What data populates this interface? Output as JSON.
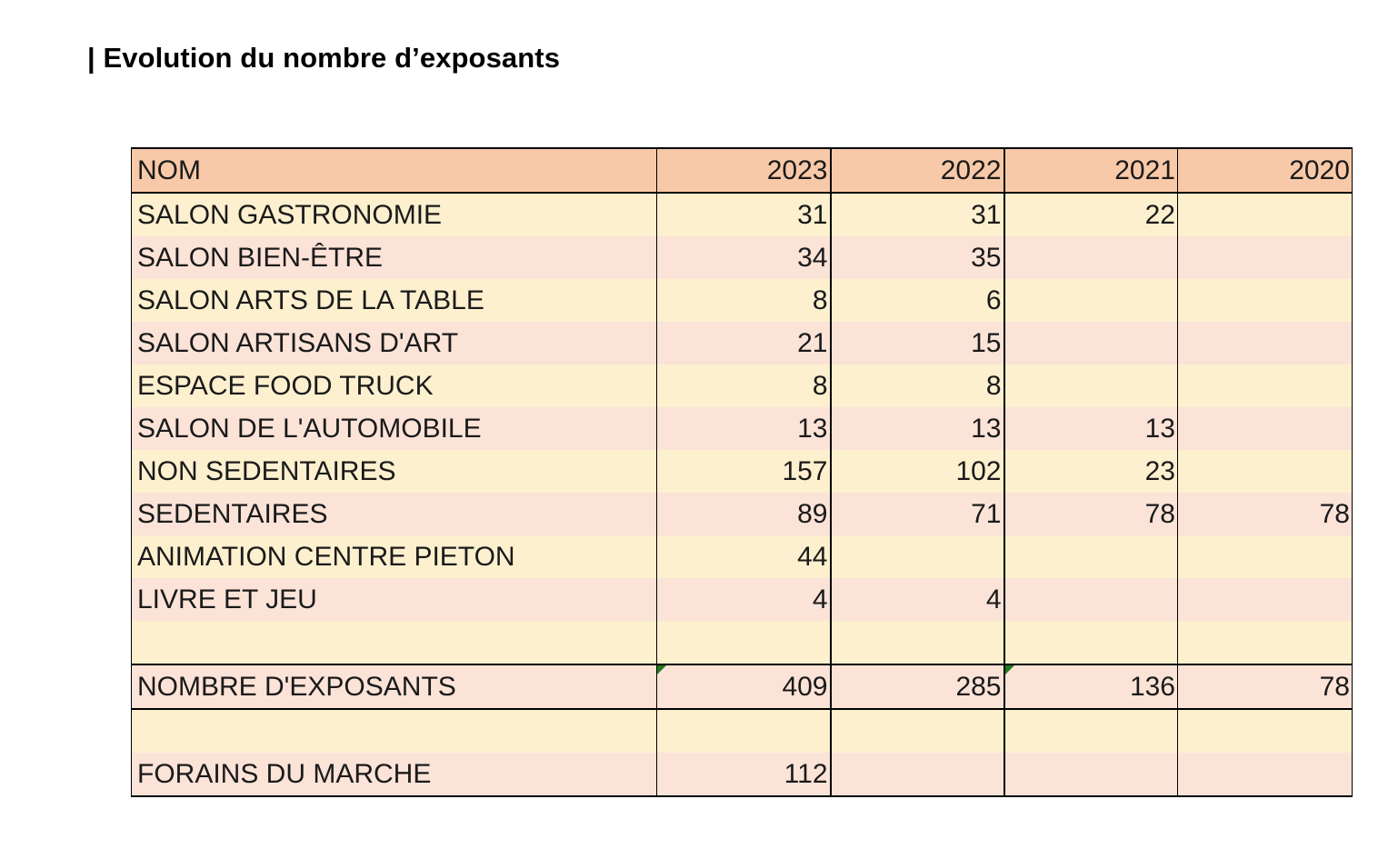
{
  "title": "| Evolution du nombre d’exposants",
  "table": {
    "header": [
      "NOM",
      "2023",
      "2022",
      "2021",
      "2020"
    ],
    "rows": [
      [
        "SALON GASTRONOMIE",
        "31",
        "31",
        "22",
        ""
      ],
      [
        "SALON BIEN-ÊTRE",
        "34",
        "35",
        "",
        ""
      ],
      [
        "SALON ARTS DE LA TABLE",
        "8",
        "6",
        "",
        ""
      ],
      [
        "SALON ARTISANS D'ART",
        "21",
        "15",
        "",
        ""
      ],
      [
        "ESPACE FOOD TRUCK",
        "8",
        "8",
        "",
        ""
      ],
      [
        "SALON DE L'AUTOMOBILE",
        "13",
        "13",
        "13",
        ""
      ],
      [
        "NON SEDENTAIRES",
        "157",
        "102",
        "23",
        ""
      ],
      [
        "SEDENTAIRES",
        "89",
        "71",
        "78",
        "78"
      ],
      [
        "ANIMATION CENTRE PIETON",
        "44",
        "",
        "",
        ""
      ],
      [
        "LIVRE ET JEU",
        "4",
        "4",
        "",
        ""
      ],
      [
        "",
        "",
        "",
        "",
        ""
      ]
    ],
    "total": [
      "NOMBRE D'EXPOSANTS",
      "409",
      "285",
      "136",
      "78"
    ],
    "blank": [
      "",
      "",
      "",
      "",
      ""
    ],
    "forains": [
      "FORAINS DU MARCHE",
      "112",
      "",
      "",
      ""
    ]
  },
  "colors": {
    "header_fill": "#f8c9a8",
    "band_cream": "#fdf0cf",
    "band_pink": "#fbe3d8",
    "formula_marker": "#1f7a1f"
  }
}
